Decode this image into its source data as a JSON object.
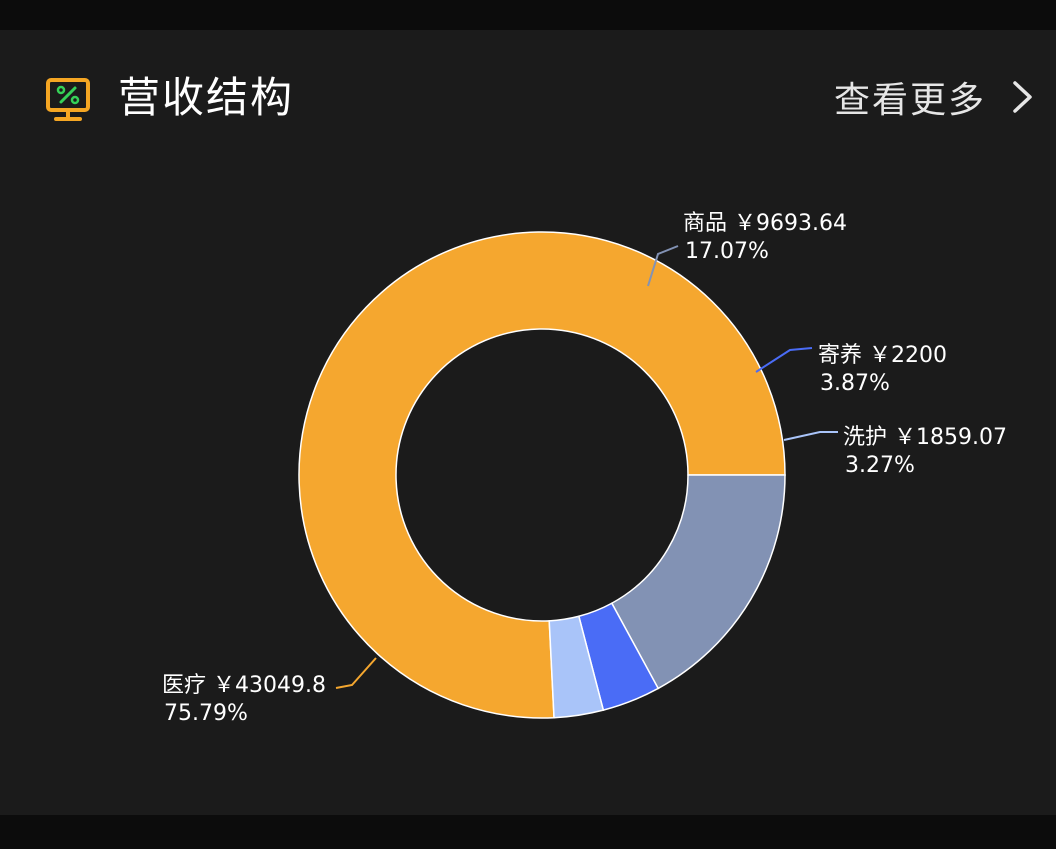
{
  "header": {
    "title": "营收结构",
    "more_label": "查看更多",
    "title_icon": "monitor-percent-icon",
    "more_icon": "chevron-right-icon"
  },
  "colors": {
    "background": "#1b1b1b",
    "icon_frame": "#f5a623",
    "icon_accent": "#36d158"
  },
  "chart_data": {
    "type": "pie",
    "variant": "donut",
    "currency": "￥",
    "legend": "none",
    "slices": [
      {
        "name": "医疗",
        "value": 43049.8,
        "value_text": "43049.8",
        "percent": "75.79%",
        "color": "#f5a72f"
      },
      {
        "name": "商品",
        "value": 9693.64,
        "value_text": "9693.64",
        "percent": "17.07%",
        "color": "#8292b4"
      },
      {
        "name": "寄养",
        "value": 2200,
        "value_text": "2200",
        "percent": "3.87%",
        "color": "#4a6cf6"
      },
      {
        "name": "洗护",
        "value": 1859.07,
        "value_text": "1859.07",
        "percent": "3.27%",
        "color": "#a9c4f9"
      }
    ]
  }
}
